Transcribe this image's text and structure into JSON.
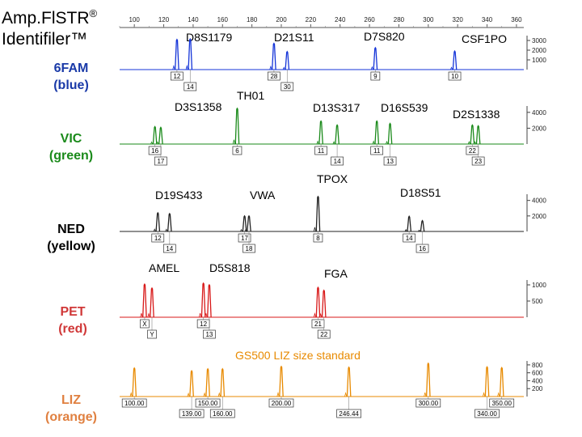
{
  "title": {
    "line1": "Amp.FlSTR",
    "reg": "®",
    "line2": "Identifiler™"
  },
  "dyes": [
    {
      "name": "6FAM",
      "color_label": "(blue)",
      "color": "#1434d8",
      "text_color": "#1a3aa8"
    },
    {
      "name": "VIC",
      "color_label": "(green)",
      "color": "#1a8a1a",
      "text_color": "#1a8a1a"
    },
    {
      "name": "NED",
      "color_label": "(yellow)",
      "color": "#222222",
      "text_color": "#000000"
    },
    {
      "name": "PET",
      "color_label": "(red)",
      "color": "#d81818",
      "text_color": "#d03838"
    },
    {
      "name": "LIZ",
      "color_label": "(orange)",
      "color": "#e88a00",
      "text_color": "#e08040"
    }
  ],
  "liz_title": "GS500 LIZ size standard",
  "chart_data": {
    "type": "line",
    "x_axis": {
      "ticks": [
        "100",
        "120",
        "140",
        "160",
        "180",
        "200",
        "220",
        "240",
        "260",
        "280",
        "300",
        "320",
        "340",
        "360"
      ],
      "range": [
        90,
        365
      ]
    },
    "panels": [
      {
        "dye": "6FAM",
        "y_ticks": [
          "3000",
          "2000",
          "1000"
        ],
        "ylim": [
          0,
          3500
        ],
        "loci": [
          {
            "name": "D8S1179",
            "alleles": [
              {
                "label": "12",
                "x": 129,
                "h": 3100
              },
              {
                "label": "14",
                "x": 138,
                "h": 3150
              }
            ]
          },
          {
            "name": "D21S11",
            "alleles": [
              {
                "label": "28",
                "x": 195,
                "h": 2700
              },
              {
                "label": "30",
                "x": 204,
                "h": 1850
              }
            ]
          },
          {
            "name": "D7S820",
            "alleles": [
              {
                "label": "9",
                "x": 264,
                "h": 2250
              }
            ]
          },
          {
            "name": "CSF1PO",
            "alleles": [
              {
                "label": "10",
                "x": 318,
                "h": 1900
              }
            ]
          }
        ]
      },
      {
        "dye": "VIC",
        "y_ticks": [
          "4000",
          "2000"
        ],
        "ylim": [
          0,
          4800
        ],
        "loci": [
          {
            "name": "D3S1358",
            "alleles": [
              {
                "label": "16",
                "x": 114,
                "h": 2200
              },
              {
                "label": "17",
                "x": 118,
                "h": 2100
              }
            ]
          },
          {
            "name": "TH01",
            "alleles": [
              {
                "label": "6",
                "x": 170,
                "h": 4500
              }
            ]
          },
          {
            "name": "D13S317",
            "alleles": [
              {
                "label": "11",
                "x": 227,
                "h": 2900
              },
              {
                "label": "14",
                "x": 238,
                "h": 2400
              }
            ]
          },
          {
            "name": "D16S539",
            "alleles": [
              {
                "label": "11",
                "x": 265,
                "h": 2900
              },
              {
                "label": "13",
                "x": 274,
                "h": 2600
              }
            ]
          },
          {
            "name": "D2S1338",
            "alleles": [
              {
                "label": "22",
                "x": 330,
                "h": 2400
              },
              {
                "label": "23",
                "x": 334,
                "h": 2300
              }
            ]
          }
        ]
      },
      {
        "dye": "NED",
        "y_ticks": [
          "4000",
          "2000"
        ],
        "ylim": [
          0,
          4800
        ],
        "loci": [
          {
            "name": "D19S433",
            "alleles": [
              {
                "label": "12",
                "x": 116,
                "h": 2400
              },
              {
                "label": "14",
                "x": 124,
                "h": 2300
              }
            ]
          },
          {
            "name": "vWA",
            "alleles": [
              {
                "label": "17",
                "x": 175,
                "h": 2000
              },
              {
                "label": "18",
                "x": 178,
                "h": 2000
              }
            ]
          },
          {
            "name": "TPOX",
            "alleles": [
              {
                "label": "8",
                "x": 225,
                "h": 4500
              }
            ]
          },
          {
            "name": "D18S51",
            "alleles": [
              {
                "label": "14",
                "x": 287,
                "h": 1950
              },
              {
                "label": "16",
                "x": 296,
                "h": 1400
              }
            ]
          }
        ]
      },
      {
        "dye": "PET",
        "y_ticks": [
          "1000",
          "500"
        ],
        "ylim": [
          0,
          1150
        ],
        "loci": [
          {
            "name": "AMEL",
            "alleles": [
              {
                "label": "X",
                "x": 107,
                "h": 1020
              },
              {
                "label": "Y",
                "x": 112,
                "h": 900
              }
            ]
          },
          {
            "name": "D5S818",
            "alleles": [
              {
                "label": "12",
                "x": 147,
                "h": 1050
              },
              {
                "label": "13",
                "x": 151,
                "h": 1000
              }
            ]
          },
          {
            "name": "FGA",
            "alleles": [
              {
                "label": "21",
                "x": 225,
                "h": 920
              },
              {
                "label": "22",
                "x": 229,
                "h": 830
              }
            ]
          }
        ]
      },
      {
        "dye": "LIZ",
        "y_ticks": [
          "800",
          "600",
          "400",
          "200"
        ],
        "ylim": [
          0,
          900
        ],
        "loci": [
          {
            "name": "",
            "alleles": [
              {
                "label": "100.00",
                "x": 100,
                "h": 720
              },
              {
                "label": "139.00",
                "x": 139,
                "h": 650
              },
              {
                "label": "150.00",
                "x": 150,
                "h": 700
              },
              {
                "label": "160.00",
                "x": 160,
                "h": 700
              },
              {
                "label": "200.00",
                "x": 200,
                "h": 760
              },
              {
                "label": "246.44",
                "x": 246,
                "h": 740
              },
              {
                "label": "300.00",
                "x": 300,
                "h": 840
              },
              {
                "label": "340.00",
                "x": 340,
                "h": 750
              },
              {
                "label": "350.00",
                "x": 350,
                "h": 730
              }
            ]
          }
        ]
      }
    ]
  },
  "locus_labels": [
    {
      "text": "D8S1179"
    },
    {
      "text": "D21S11"
    },
    {
      "text": "D7S820"
    },
    {
      "text": "CSF1PO"
    },
    {
      "text": "D3S1358"
    },
    {
      "text": "TH01"
    },
    {
      "text": "D13S317"
    },
    {
      "text": "D16S539"
    },
    {
      "text": "D2S1338"
    },
    {
      "text": "D19S433"
    },
    {
      "text": "VWA"
    },
    {
      "text": "TPOX"
    },
    {
      "text": "D18S51"
    },
    {
      "text": "AMEL"
    },
    {
      "text": "D5S818"
    },
    {
      "text": "FGA"
    }
  ]
}
